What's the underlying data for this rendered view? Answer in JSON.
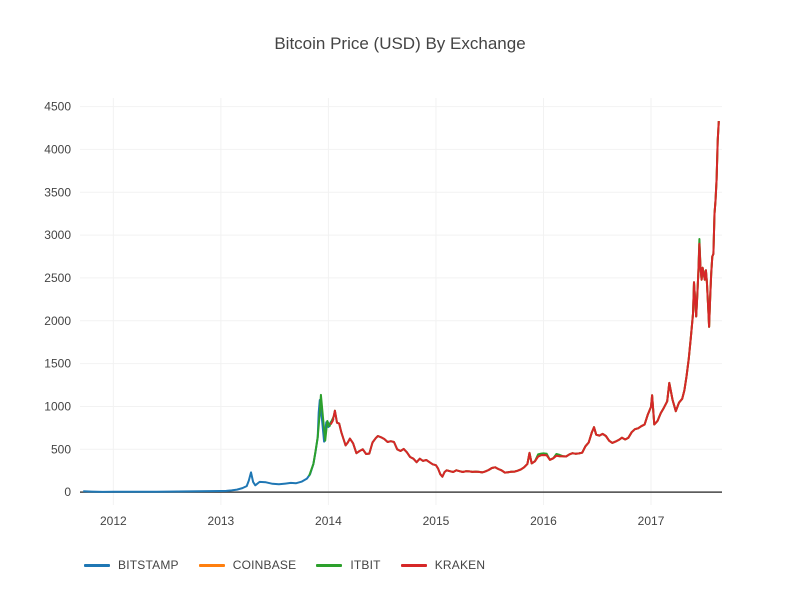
{
  "chart_data": {
    "type": "line",
    "title": "Bitcoin Price (USD) By Exchange",
    "xlabel": "",
    "ylabel": "",
    "x_ticks": [
      2012,
      2013,
      2014,
      2015,
      2016,
      2017
    ],
    "y_ticks": [
      0,
      500,
      1000,
      1500,
      2000,
      2500,
      3000,
      3500,
      4000,
      4500
    ],
    "x_range": [
      2011.69,
      2017.66
    ],
    "y_range": [
      -150,
      4600
    ],
    "ylim": [
      0,
      4500
    ],
    "grid": "faint",
    "legend_position": "bottom-left",
    "text_color": "#444444",
    "grid_color": "#f2f2f2",
    "zero_line_color": "#444444",
    "background_color": "#ffffff",
    "series": [
      {
        "name": "BITSTAMP",
        "color": "#1f77b4",
        "x": [
          2011.72,
          2011.8,
          2011.9,
          2012.0,
          2012.1,
          2012.2,
          2012.3,
          2012.4,
          2012.5,
          2012.6,
          2012.7,
          2012.8,
          2012.9,
          2013.0,
          2013.05,
          2013.1,
          2013.15,
          2013.2,
          2013.24,
          2013.26,
          2013.28,
          2013.3,
          2013.32,
          2013.36,
          2013.42,
          2013.48,
          2013.54,
          2013.6,
          2013.65,
          2013.7,
          2013.75,
          2013.8,
          2013.83,
          2013.86,
          2013.88,
          2013.9,
          2013.91,
          2013.92,
          2013.94,
          2013.96,
          2013.98,
          2014.0,
          2014.02,
          2014.05
        ],
        "y": [
          11,
          6,
          3,
          5,
          5,
          5,
          5,
          5,
          6,
          7,
          9,
          11,
          12,
          13,
          15,
          20,
          30,
          47,
          70,
          135,
          230,
          120,
          80,
          120,
          115,
          98,
          92,
          100,
          108,
          104,
          122,
          158,
          210,
          330,
          470,
          640,
          930,
          1075,
          845,
          590,
          815,
          760,
          815,
          855
        ]
      },
      {
        "name": "COINBASE",
        "color": "#ff7f0e",
        "x": [
          2015.1,
          2015.13,
          2015.16,
          2015.19,
          2015.22,
          2015.25,
          2015.28,
          2015.31,
          2015.34,
          2015.37,
          2015.4,
          2015.43,
          2015.46,
          2015.49,
          2015.52,
          2015.55,
          2015.58,
          2015.61,
          2015.64,
          2015.67,
          2015.7,
          2015.73,
          2015.76,
          2015.79,
          2015.82,
          2015.85,
          2015.87,
          2015.89,
          2015.92,
          2015.95,
          2015.98,
          2016.0,
          2016.03,
          2016.06,
          2016.09,
          2016.12,
          2016.15,
          2016.18,
          2016.21,
          2016.24,
          2016.27,
          2016.3,
          2016.33,
          2016.36,
          2016.39,
          2016.42,
          2016.45,
          2016.47,
          2016.49,
          2016.52,
          2016.55,
          2016.58,
          2016.61,
          2016.64,
          2016.67,
          2016.7,
          2016.73,
          2016.76,
          2016.79,
          2016.82,
          2016.85,
          2016.88,
          2016.91,
          2016.94,
          2016.97,
          2017.0,
          2017.01,
          2017.03,
          2017.06,
          2017.09,
          2017.12,
          2017.15,
          2017.17,
          2017.2,
          2017.23,
          2017.26,
          2017.29,
          2017.31,
          2017.33,
          2017.35,
          2017.37,
          2017.39,
          2017.4,
          2017.41,
          2017.42,
          2017.43,
          2017.44,
          2017.45,
          2017.46,
          2017.47,
          2017.48,
          2017.49,
          2017.5,
          2017.51,
          2017.52,
          2017.53,
          2017.54,
          2017.55,
          2017.56,
          2017.57,
          2017.58,
          2017.59,
          2017.6,
          2017.61,
          2017.62,
          2017.63
        ],
        "y": [
          255,
          245,
          235,
          255,
          245,
          235,
          245,
          242,
          236,
          240,
          236,
          230,
          242,
          258,
          282,
          290,
          270,
          255,
          228,
          232,
          237,
          240,
          250,
          265,
          290,
          330,
          458,
          335,
          360,
          415,
          432,
          434,
          430,
          378,
          395,
          425,
          418,
          420,
          416,
          440,
          455,
          448,
          452,
          460,
          535,
          580,
          700,
          758,
          670,
          660,
          680,
          655,
          600,
          575,
          590,
          610,
          635,
          615,
          635,
          700,
          735,
          745,
          770,
          790,
          905,
          995,
          1130,
          790,
          830,
          920,
          985,
          1060,
          1275,
          1080,
          945,
          1045,
          1090,
          1190,
          1350,
          1550,
          1800,
          2080,
          2450,
          2250,
          2050,
          2300,
          2550,
          2900,
          2620,
          2480,
          2620,
          2550,
          2480,
          2590,
          2450,
          2200,
          1930,
          2280,
          2550,
          2750,
          2780,
          3250,
          3400,
          3650,
          4100,
          4330
        ]
      },
      {
        "name": "ITBIT",
        "color": "#2ca02c",
        "x": [
          2013.82,
          2013.86,
          2013.88,
          2013.9,
          2013.92,
          2013.93,
          2013.95,
          2013.97,
          2013.99,
          2014.01,
          2014.03,
          2014.05,
          2014.06,
          2014.08,
          2014.1,
          2014.12,
          2014.14,
          2014.16,
          2014.18,
          2014.2,
          2014.23,
          2014.26,
          2014.29,
          2014.32,
          2014.35,
          2014.38,
          2014.41,
          2014.44,
          2014.46,
          2014.49,
          2014.52,
          2014.55,
          2014.58,
          2014.61,
          2014.64,
          2014.67,
          2014.7,
          2014.73,
          2014.76,
          2014.79,
          2014.82,
          2014.85,
          2014.88,
          2014.91,
          2014.94,
          2014.97,
          2015.0,
          2015.02,
          2015.04,
          2015.06,
          2015.08,
          2015.1,
          2015.13,
          2015.16,
          2015.19,
          2015.22,
          2015.25,
          2015.28,
          2015.31,
          2015.34,
          2015.37,
          2015.4,
          2015.43,
          2015.46,
          2015.49,
          2015.52,
          2015.55,
          2015.58,
          2015.61,
          2015.64,
          2015.67,
          2015.7,
          2015.73,
          2015.76,
          2015.79,
          2015.82,
          2015.85,
          2015.87,
          2015.89,
          2015.92,
          2015.95,
          2015.98,
          2016.0,
          2016.03,
          2016.06,
          2016.09,
          2016.12,
          2016.15,
          2016.18,
          2016.21,
          2016.24,
          2016.27,
          2016.3,
          2016.33,
          2016.36,
          2016.39,
          2016.42,
          2016.45,
          2016.47,
          2016.49,
          2016.52,
          2016.55,
          2016.58,
          2016.61,
          2016.64,
          2016.67,
          2016.7,
          2016.73,
          2016.76,
          2016.79,
          2016.82,
          2016.85,
          2016.88,
          2016.91,
          2016.94,
          2016.97,
          2017.0,
          2017.01,
          2017.03,
          2017.06,
          2017.09,
          2017.12,
          2017.15,
          2017.17,
          2017.2,
          2017.23,
          2017.26,
          2017.29,
          2017.31,
          2017.33,
          2017.35,
          2017.37,
          2017.39,
          2017.4,
          2017.41,
          2017.42,
          2017.43,
          2017.44,
          2017.45,
          2017.46,
          2017.47,
          2017.48,
          2017.49,
          2017.5,
          2017.51,
          2017.52,
          2017.53,
          2017.54,
          2017.55,
          2017.56,
          2017.57,
          2017.58,
          2017.59,
          2017.6,
          2017.61,
          2017.62,
          2017.63
        ],
        "y": [
          190,
          330,
          475,
          640,
          930,
          1135,
          870,
          600,
          830,
          770,
          830,
          885,
          950,
          810,
          800,
          700,
          620,
          545,
          580,
          625,
          570,
          455,
          480,
          500,
          445,
          450,
          580,
          630,
          655,
          640,
          620,
          585,
          595,
          585,
          500,
          480,
          505,
          465,
          410,
          390,
          350,
          390,
          365,
          375,
          350,
          325,
          315,
          275,
          210,
          180,
          235,
          255,
          245,
          235,
          255,
          245,
          235,
          245,
          242,
          236,
          240,
          236,
          230,
          242,
          258,
          282,
          290,
          270,
          255,
          228,
          232,
          237,
          240,
          250,
          265,
          290,
          330,
          458,
          335,
          360,
          440,
          450,
          452,
          448,
          378,
          395,
          445,
          435,
          420,
          416,
          440,
          455,
          448,
          452,
          460,
          535,
          580,
          700,
          758,
          670,
          660,
          680,
          655,
          600,
          575,
          590,
          610,
          635,
          615,
          635,
          700,
          735,
          745,
          770,
          790,
          905,
          995,
          1130,
          790,
          830,
          920,
          985,
          1060,
          1275,
          1080,
          945,
          1045,
          1090,
          1190,
          1350,
          1550,
          1800,
          2080,
          2450,
          2250,
          2050,
          2300,
          2550,
          2955,
          2620,
          2480,
          2620,
          2550,
          2480,
          2590,
          2450,
          2200,
          1930,
          2280,
          2550,
          2750,
          2780,
          3250,
          3400,
          3650,
          4100,
          4330
        ]
      },
      {
        "name": "KRAKEN",
        "color": "#d62728",
        "x": [
          2014.02,
          2014.04,
          2014.06,
          2014.08,
          2014.1,
          2014.12,
          2014.14,
          2014.16,
          2014.18,
          2014.2,
          2014.23,
          2014.26,
          2014.29,
          2014.32,
          2014.35,
          2014.38,
          2014.41,
          2014.44,
          2014.46,
          2014.49,
          2014.52,
          2014.55,
          2014.58,
          2014.61,
          2014.64,
          2014.67,
          2014.7,
          2014.73,
          2014.76,
          2014.79,
          2014.82,
          2014.85,
          2014.88,
          2014.91,
          2014.94,
          2014.97,
          2015.0,
          2015.02,
          2015.04,
          2015.06,
          2015.08,
          2015.1,
          2015.13,
          2015.16,
          2015.19,
          2015.22,
          2015.25,
          2015.28,
          2015.31,
          2015.34,
          2015.37,
          2015.4,
          2015.43,
          2015.46,
          2015.49,
          2015.52,
          2015.55,
          2015.58,
          2015.61,
          2015.64,
          2015.67,
          2015.7,
          2015.73,
          2015.76,
          2015.79,
          2015.82,
          2015.85,
          2015.87,
          2015.89,
          2015.92,
          2015.95,
          2015.98,
          2016.0,
          2016.03,
          2016.06,
          2016.09,
          2016.12,
          2016.15,
          2016.18,
          2016.21,
          2016.24,
          2016.27,
          2016.3,
          2016.33,
          2016.36,
          2016.39,
          2016.42,
          2016.45,
          2016.47,
          2016.49,
          2016.52,
          2016.55,
          2016.58,
          2016.61,
          2016.64,
          2016.67,
          2016.7,
          2016.73,
          2016.76,
          2016.79,
          2016.82,
          2016.85,
          2016.88,
          2016.91,
          2016.94,
          2016.97,
          2017.0,
          2017.01,
          2017.03,
          2017.06,
          2017.09,
          2017.12,
          2017.15,
          2017.17,
          2017.2,
          2017.23,
          2017.26,
          2017.29,
          2017.31,
          2017.33,
          2017.35,
          2017.37,
          2017.39,
          2017.4,
          2017.41,
          2017.42,
          2017.43,
          2017.44,
          2017.45,
          2017.46,
          2017.47,
          2017.48,
          2017.49,
          2017.5,
          2017.51,
          2017.52,
          2017.53,
          2017.54,
          2017.55,
          2017.56,
          2017.57,
          2017.58,
          2017.59,
          2017.6,
          2017.61,
          2017.62,
          2017.63
        ],
        "y": [
          790,
          830,
          950,
          810,
          800,
          700,
          620,
          545,
          580,
          625,
          570,
          455,
          480,
          500,
          445,
          450,
          580,
          630,
          655,
          640,
          620,
          585,
          595,
          585,
          500,
          480,
          505,
          465,
          410,
          390,
          350,
          390,
          365,
          375,
          350,
          325,
          315,
          275,
          210,
          180,
          235,
          255,
          245,
          235,
          255,
          245,
          235,
          245,
          242,
          236,
          240,
          236,
          230,
          242,
          258,
          282,
          290,
          270,
          255,
          228,
          232,
          237,
          240,
          250,
          265,
          290,
          330,
          458,
          335,
          360,
          415,
          432,
          434,
          430,
          378,
          395,
          425,
          418,
          420,
          416,
          440,
          455,
          448,
          452,
          460,
          535,
          580,
          700,
          758,
          670,
          660,
          680,
          655,
          600,
          575,
          590,
          610,
          635,
          615,
          635,
          700,
          735,
          745,
          770,
          790,
          905,
          995,
          1130,
          790,
          830,
          920,
          985,
          1060,
          1275,
          1080,
          945,
          1045,
          1090,
          1190,
          1350,
          1550,
          1800,
          2080,
          2450,
          2250,
          2050,
          2300,
          2550,
          2900,
          2620,
          2480,
          2620,
          2550,
          2480,
          2590,
          2450,
          2200,
          1930,
          2280,
          2550,
          2750,
          2780,
          3250,
          3400,
          3650,
          4100,
          4330
        ]
      }
    ]
  }
}
